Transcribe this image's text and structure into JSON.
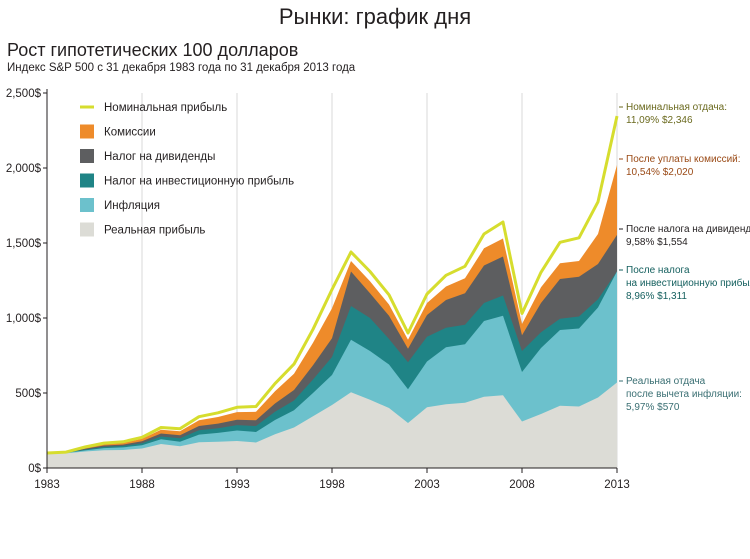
{
  "page_title": "Рынки: график дня",
  "chart_title": "Рост гипотетических 100 долларов",
  "chart_subtitle": "Индекс S&P 500 с 31 декабря 1983 года по 31 декабря 2013 года",
  "colors": {
    "nominal_line": "#d6dd2e",
    "fees": "#ee8b2a",
    "dividend_tax": "#5d5e60",
    "capital_gains_tax": "#1f8486",
    "inflation": "#6cc1cc",
    "real": "#dcdcd6",
    "grid": "#cfcfcf",
    "ann_nominal": "#6b6a1f",
    "ann_fees": "#9a4a16",
    "ann_dividend": "#231f20",
    "ann_capgains": "#15605f",
    "ann_real": "#3a6f73"
  },
  "legend": [
    {
      "label": "Номинальная прибыль",
      "kind": "line",
      "color_key": "nominal_line"
    },
    {
      "label": "Комиссии",
      "kind": "box",
      "color_key": "fees"
    },
    {
      "label": "Налог на дивиденды",
      "kind": "box",
      "color_key": "dividend_tax"
    },
    {
      "label": "Налог на инвестиционную прибыль",
      "kind": "box",
      "color_key": "capital_gains_tax"
    },
    {
      "label": "Инфляция",
      "kind": "box",
      "color_key": "inflation"
    },
    {
      "label": "Реальная прибыль",
      "kind": "box",
      "color_key": "real"
    }
  ],
  "annotations": [
    {
      "lines": [
        "Номинальная отдача:",
        "11,09%  $2,346"
      ],
      "color_key": "ann_nominal",
      "value": 2346
    },
    {
      "lines": [
        "После уплаты комиссий:",
        "10,54%  $2,020"
      ],
      "color_key": "ann_fees",
      "value": 2020
    },
    {
      "lines": [
        "После налога на дивиденды:",
        "9,58% $1,554"
      ],
      "color_key": "ann_dividend",
      "value": 1554
    },
    {
      "lines": [
        "После налога",
        "на инвестиционную прибыль:",
        "8,96% $1,311"
      ],
      "color_key": "ann_capgains",
      "value": 1311
    },
    {
      "lines": [
        "Реальная отдача",
        "после вычета инфляции:",
        "5,97% $570"
      ],
      "color_key": "ann_real",
      "value": 570
    }
  ],
  "chart_data": {
    "type": "area",
    "title": "Рост гипотетических 100 долларов",
    "subtitle": "Индекс S&P 500 с 31 декабря 1983 года по 31 декабря 2013 года",
    "xlabel": "",
    "ylabel": "",
    "xlim": [
      1983,
      2013
    ],
    "ylim": [
      0,
      2500
    ],
    "x_ticks": [
      1983,
      1988,
      1993,
      1998,
      2003,
      2008,
      2013
    ],
    "x_tick_labels": [
      "1983",
      "1988",
      "1993",
      "1998",
      "2003",
      "2008",
      "2013"
    ],
    "y_ticks": [
      0,
      500,
      1000,
      1500,
      2000,
      2500
    ],
    "y_tick_labels": [
      "0$",
      "500$",
      "1,000$",
      "1,500$",
      "2,000$",
      "2,500$"
    ],
    "grid": "vertical",
    "legend_position": "top-left",
    "x": [
      1983,
      1984,
      1985,
      1986,
      1987,
      1988,
      1989,
      1990,
      1991,
      1992,
      1993,
      1994,
      1995,
      1996,
      1997,
      1998,
      1999,
      2000,
      2001,
      2002,
      2003,
      2004,
      2005,
      2006,
      2007,
      2008,
      2009,
      2010,
      2011,
      2012,
      2013
    ],
    "series": [
      {
        "name": "Номинальная прибыль",
        "color_key": "nominal_line",
        "values": [
          100,
          106,
          140,
          166,
          175,
          205,
          270,
          262,
          342,
          368,
          405,
          410,
          563,
          693,
          925,
          1190,
          1440,
          1310,
          1155,
          900,
          1160,
          1285,
          1345,
          1560,
          1640,
          1030,
          1305,
          1505,
          1535,
          1775,
          2346
        ]
      },
      {
        "name": "Комиссии",
        "color_key": "fees",
        "values": [
          100,
          105,
          135,
          160,
          168,
          195,
          255,
          245,
          318,
          340,
          373,
          375,
          512,
          628,
          835,
          1065,
          1380,
          1245,
          1090,
          855,
          1100,
          1210,
          1265,
          1465,
          1530,
          960,
          1205,
          1365,
          1380,
          1560,
          2020
        ]
      },
      {
        "name": "Налог на дивиденды",
        "color_key": "dividend_tax",
        "values": [
          100,
          104,
          128,
          150,
          156,
          178,
          230,
          218,
          280,
          296,
          322,
          318,
          430,
          520,
          685,
          865,
          1310,
          1165,
          1015,
          795,
          1020,
          1120,
          1165,
          1350,
          1410,
          885,
          1100,
          1260,
          1275,
          1360,
          1554
        ]
      },
      {
        "name": "Налог на инвестиционную прибыль",
        "color_key": "capital_gains_tax",
        "values": [
          100,
          103,
          123,
          140,
          147,
          165,
          210,
          198,
          252,
          265,
          286,
          280,
          375,
          450,
          590,
          740,
          1080,
          1000,
          860,
          705,
          875,
          935,
          955,
          1100,
          1150,
          780,
          905,
          995,
          1010,
          1125,
          1311
        ]
      },
      {
        "name": "Инфляция",
        "color_key": "inflation",
        "values": [
          100,
          101,
          117,
          133,
          137,
          152,
          192,
          175,
          223,
          234,
          250,
          240,
          320,
          385,
          500,
          620,
          855,
          780,
          690,
          525,
          710,
          805,
          825,
          980,
          1015,
          640,
          800,
          920,
          930,
          1070,
          1311
        ]
      },
      {
        "name": "Реальная прибыль",
        "color_key": "real",
        "values": [
          100,
          97,
          110,
          118,
          120,
          130,
          160,
          145,
          172,
          175,
          180,
          170,
          225,
          270,
          345,
          420,
          505,
          455,
          400,
          300,
          405,
          425,
          435,
          475,
          485,
          310,
          360,
          415,
          410,
          470,
          570
        ]
      }
    ]
  }
}
